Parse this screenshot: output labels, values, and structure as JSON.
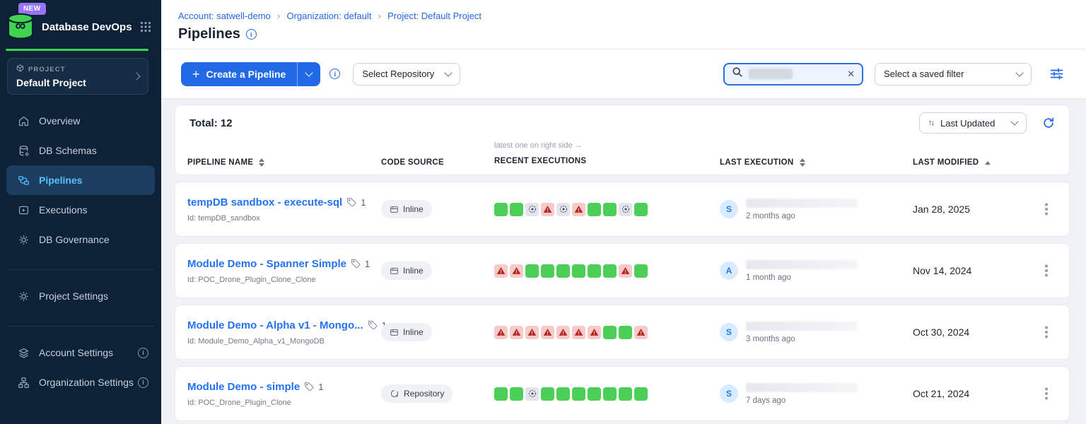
{
  "sidebar": {
    "new_badge": "NEW",
    "app_title": "Database DevOps",
    "project_label": "PROJECT",
    "project_name": "Default Project",
    "nav": [
      {
        "label": "Overview",
        "icon": "home-icon"
      },
      {
        "label": "DB Schemas",
        "icon": "database-icon"
      },
      {
        "label": "Pipelines",
        "icon": "pipelines-icon",
        "active": true
      },
      {
        "label": "Executions",
        "icon": "play-square-icon"
      },
      {
        "label": "DB Governance",
        "icon": "gear-icon"
      }
    ],
    "secondary_nav": [
      {
        "label": "Project Settings",
        "icon": "gear-icon"
      }
    ],
    "tertiary_nav": [
      {
        "label": "Account Settings",
        "icon": "layers-icon",
        "has_info": true
      },
      {
        "label": "Organization Settings",
        "icon": "org-chart-icon",
        "has_info": true
      }
    ]
  },
  "header": {
    "breadcrumb": [
      "Account: satwell-demo",
      "Organization: default",
      "Project: Default Project"
    ],
    "page_title": "Pipelines"
  },
  "toolbar": {
    "create_button": "Create a Pipeline",
    "select_repository": "Select Repository",
    "search_placeholder": "",
    "search_redacted": true,
    "saved_filter": "Select a saved filter"
  },
  "table": {
    "total_label": "Total: 12",
    "sort_label": "Last Updated",
    "executions_hint": "latest one on right side →",
    "columns": [
      "PIPELINE NAME",
      "CODE SOURCE",
      "RECENT EXECUTIONS",
      "LAST EXECUTION",
      "LAST MODIFIED"
    ],
    "rows": [
      {
        "name": "tempDB sandbox - execute-sql",
        "tag_count": "1",
        "id": "Id: tempDB_sandbox",
        "code_source": "Inline",
        "executions": [
          "success",
          "success",
          "canceled",
          "failed",
          "canceled",
          "failed",
          "success",
          "success",
          "canceled",
          "success"
        ],
        "avatar": "S",
        "executed_ago": "2 months ago",
        "redacted_name": true,
        "last_modified": "Jan 28, 2025"
      },
      {
        "name": "Module Demo - Spanner Simple",
        "tag_count": "1",
        "id": "Id: POC_Drone_Plugin_Clone_Clone",
        "code_source": "Inline",
        "executions": [
          "failed",
          "failed",
          "success",
          "success",
          "success",
          "success",
          "success",
          "success",
          "failed",
          "success"
        ],
        "avatar": "A",
        "executed_ago": "1 month ago",
        "redacted_name": true,
        "last_modified": "Nov 14, 2024"
      },
      {
        "name": "Module Demo - Alpha v1 - Mongo...",
        "tag_count": "1",
        "id": "Id: Module_Demo_Alpha_v1_MongoDB",
        "code_source": "Inline",
        "executions": [
          "failed",
          "failed",
          "failed",
          "failed",
          "failed",
          "failed",
          "failed",
          "success",
          "success",
          "failed"
        ],
        "avatar": "S",
        "executed_ago": "3 months ago",
        "redacted_name": true,
        "last_modified": "Oct 30, 2024"
      },
      {
        "name": "Module Demo - simple",
        "tag_count": "1",
        "id": "Id: POC_Drone_Plugin_Clone",
        "code_source": "Repository",
        "executions": [
          "success",
          "success",
          "canceled",
          "success",
          "success",
          "success",
          "success",
          "success",
          "success",
          "success"
        ],
        "avatar": "S",
        "executed_ago": "7 days ago",
        "redacted_name": true,
        "last_modified": "Oct 21, 2024"
      }
    ]
  },
  "icons": {
    "app-logo-icon": "green database cylinder with infinity loop",
    "apps-grid-icon": "3x3 dots",
    "info-icon": "ⓘ",
    "chevron-down-icon": "⌄",
    "chevron-right-icon": "›",
    "plus-icon": "+",
    "search-icon": "magnifier",
    "close-icon": "✕",
    "filter-sliders-icon": "equalizer lines",
    "sort-arrows-icon": "↑↓",
    "refresh-icon": "⟳",
    "tag-icon": "label tag",
    "warning-triangle-icon": "failed execution ⚠",
    "canceled-circle-icon": "dashed circle with dot",
    "kebab-menu-icon": "⋮",
    "arrow-right-icon": "→"
  },
  "colors": {
    "accent_blue": "#2269e8",
    "brand_green": "#3fd34f",
    "badge_purple": "#9674f5",
    "sidebar_bg": "#0d2137",
    "sidebar_active_bg": "#1b3d5f",
    "sidebar_active_text": "#56c2ff",
    "page_bg": "#f0f2f7",
    "link_blue": "#2472f0",
    "success_green": "#4ccf56",
    "failed_red_bg": "#f7caca",
    "failed_red": "#b3261e",
    "canceled_gray_bg": "#e4e4ee",
    "avatar_bg": "#d9ecff"
  }
}
